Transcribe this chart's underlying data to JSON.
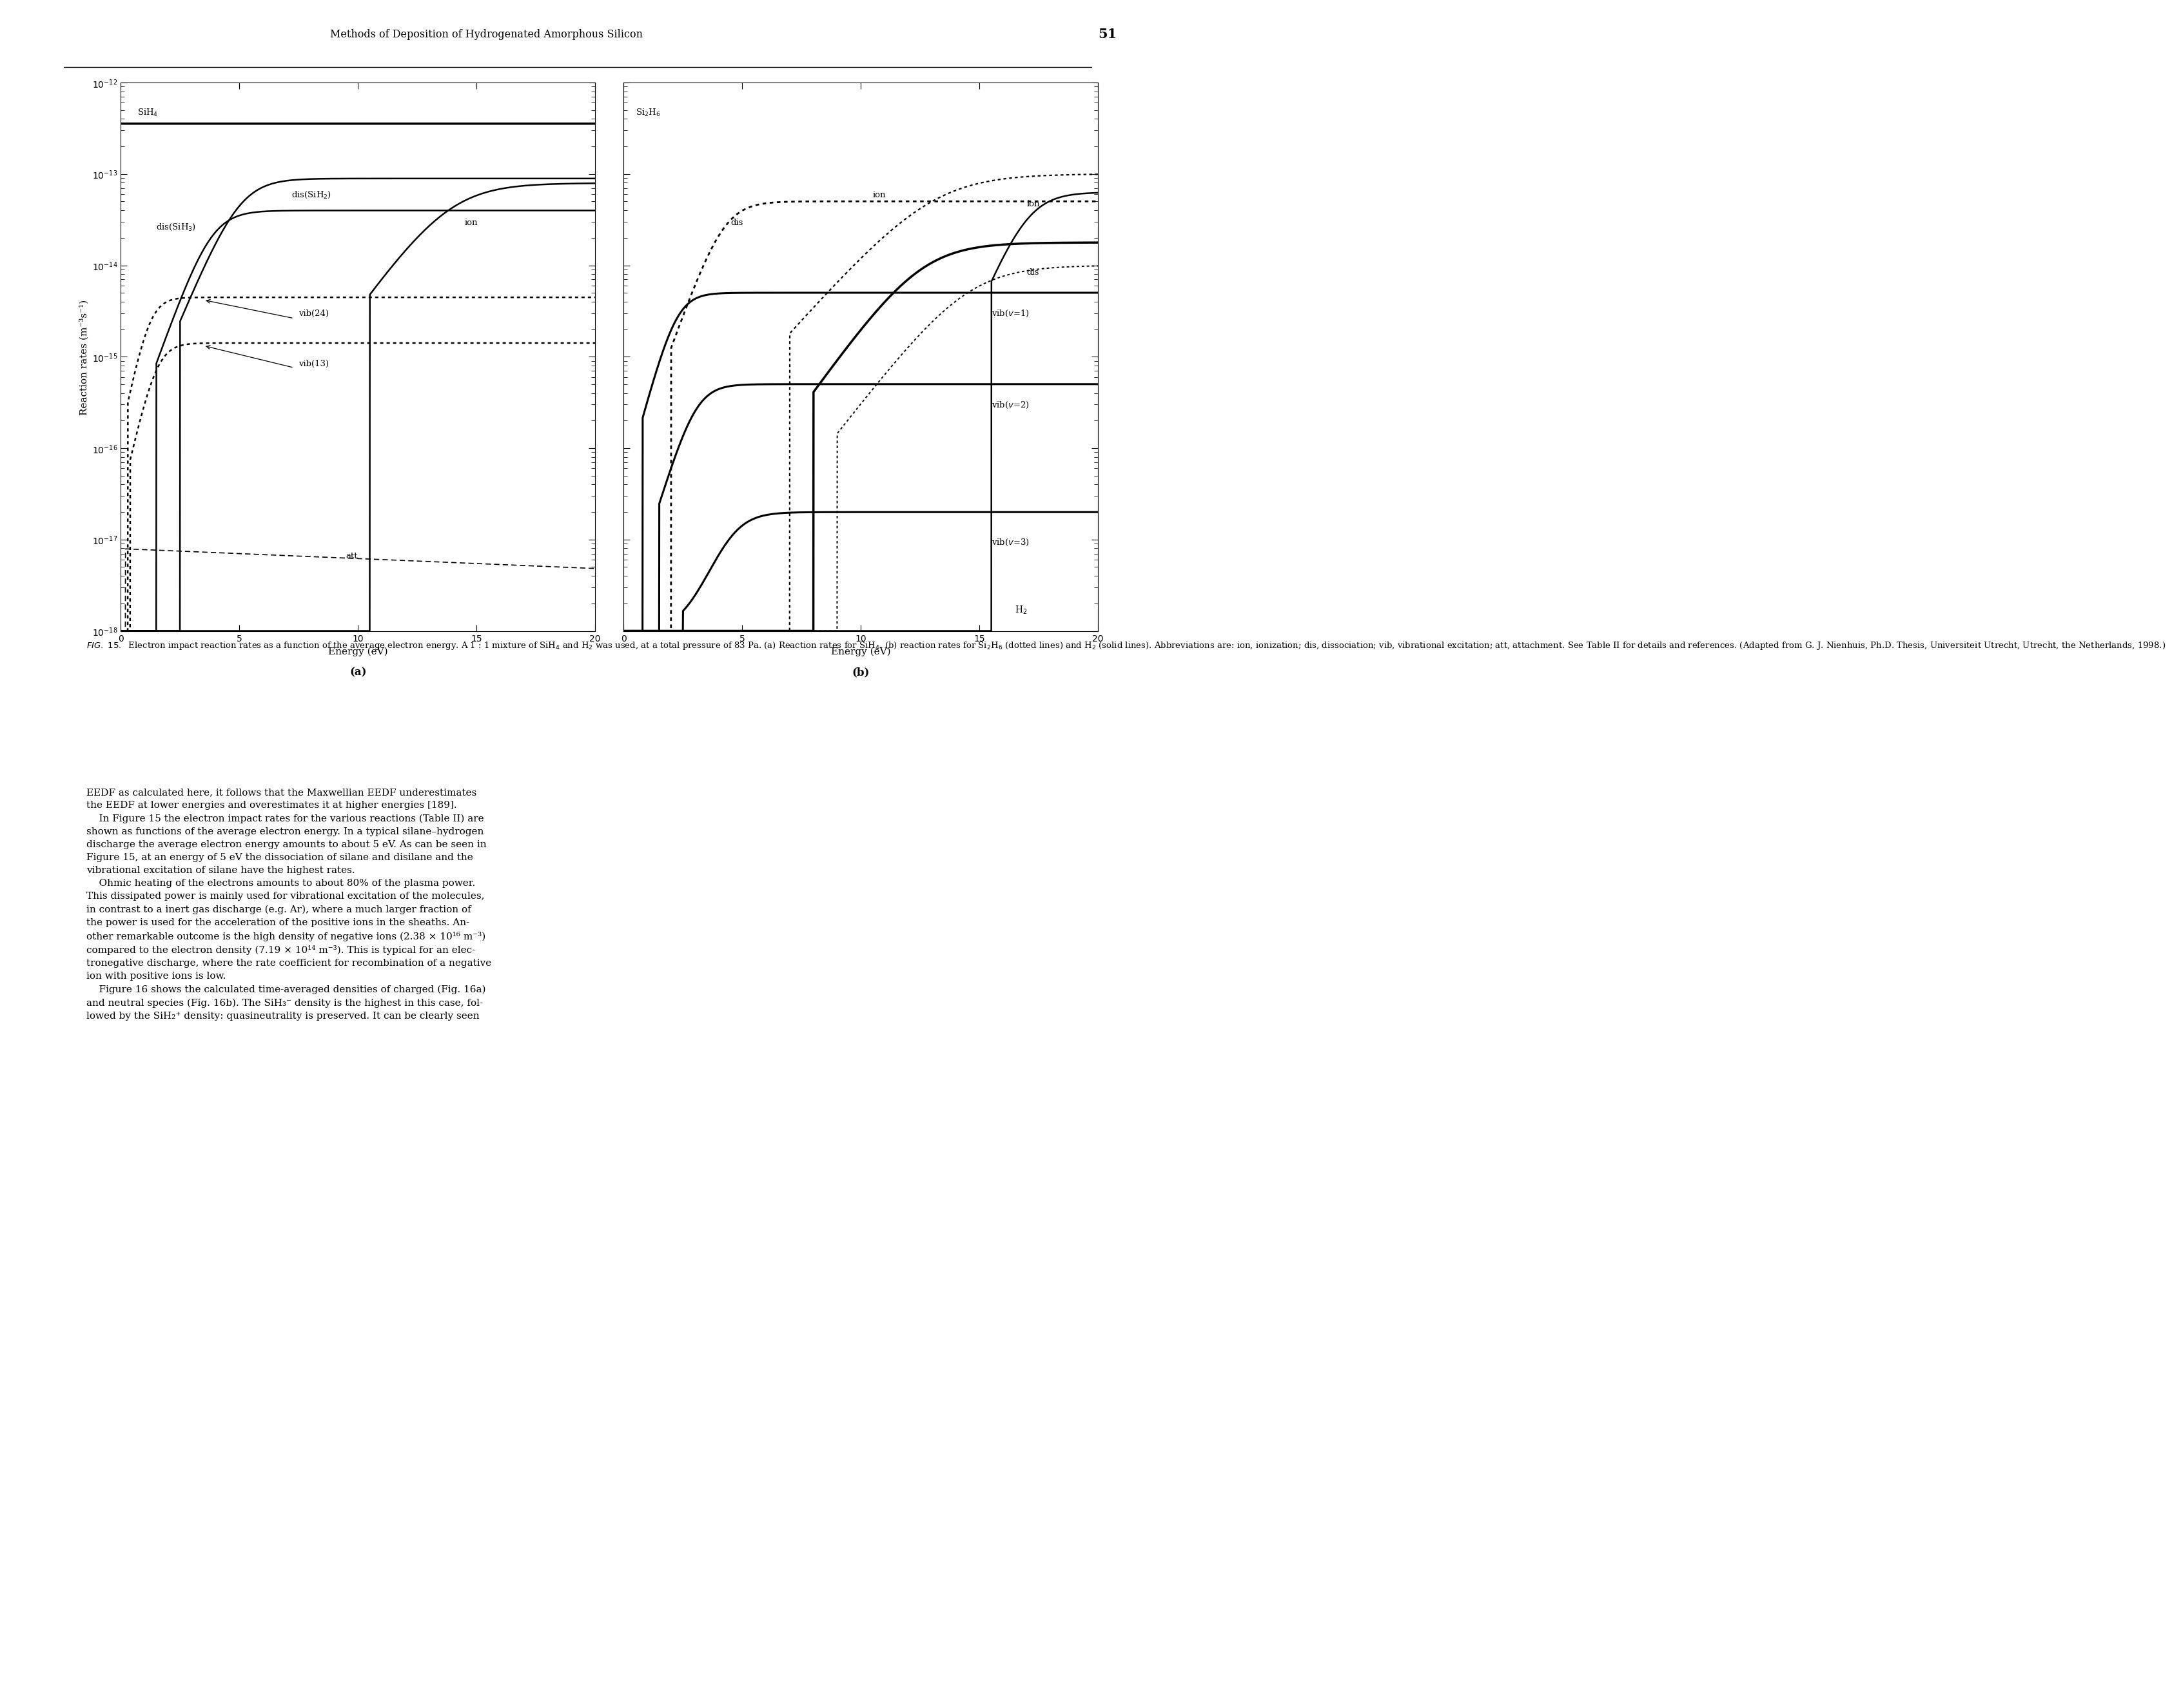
{
  "header_text": "Methods of Deposition of Hydrogenated Amorphous Silicon",
  "page_number": "51",
  "ylim_log": [
    -18,
    -12
  ],
  "xlim": [
    0,
    20
  ],
  "xlabel": "Energy (eV)",
  "ylabel": "Reaction rates (m⁻³s⁻¹)",
  "subplot_label_a": "(a)",
  "subplot_label_b": "(b)",
  "background_color": "#ffffff",
  "line_color": "#000000",
  "fig_caption_italic": "FIG. 15.",
  "fig_caption_rest": "  Electron impact reaction rates as a function of the average electron energy. A 1 : 1 mixture of SiH₄ and H₂ was used, at a total pressure of 83 Pa. (a) Reaction rates for SiH₄. (b) reaction rates for Si₂H₆ (dotted lines) and H₂ (solid lines). Abbreviations are: ion, ionization; dis, dissociation; vib, vibrational excitation; att, attachment. See Table II for details and references. (Adapted from G. J. Nienhuis, Ph.D. Thesis, Universiteit Utrecht, Utrecht, the Netherlands, 1998.)",
  "body_p1": "EEDF as calculated here, it follows that the Maxwellian EEDF underestimates the EEDF at lower energies and overestimates it at higher energies [189].",
  "body_p2": "In Figure 15 the electron impact rates for the various reactions (Table II) are shown as functions of the average electron energy. In a typical silane–hydrogen discharge the average electron energy amounts to about 5 eV. As can be seen in Figure 15, at an energy of 5 eV the dissociation of silane and disilane and the vibrational excitation of silane have the highest rates.",
  "body_p3": "Ohmic heating of the electrons amounts to about 80% of the plasma power. This dissipated power is mainly used for vibrational excitation of the molecules, in contrast to a inert gas discharge (e.g. Ar), where a much larger fraction of the power is used for the acceleration of the positive ions in the sheaths. Another remarkable outcome is the high density of negative ions (2.38 × 10¹⁶ m⁻³) compared to the electron density (7.19 × 10¹⁴ m⁻³). This is typical for an electronegative discharge, where the rate coefficient for recombination of a negative ion with positive ions is low.",
  "body_p4": "Figure 16 shows the calculated time-averaged densities of charged (Fig. 16a) and neutral species (Fig. 16b). The SiH₃⁻ density is the highest in this case, followed by the SiH₂⁺ density: quasineutrality is preserved. It can be clearly seen"
}
